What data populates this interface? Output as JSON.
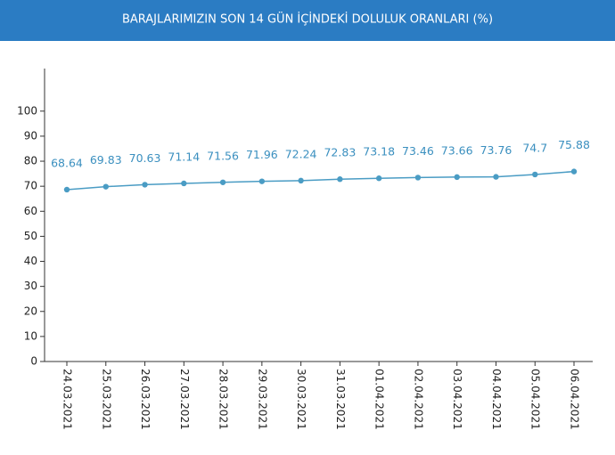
{
  "chart_data": {
    "type": "line",
    "title": "BARAJLARIMIZIN SON 14 GÜN İÇİNDEKİ DOLULUK ORANLARI (%)",
    "categories": [
      "24.03.2021",
      "25.03.2021",
      "26.03.2021",
      "27.03.2021",
      "28.03.2021",
      "29.03.2021",
      "30.03.2021",
      "31.03.2021",
      "01.04.2021",
      "02.04.2021",
      "03.04.2021",
      "04.04.2021",
      "05.04.2021",
      "06.04.2021"
    ],
    "values": [
      68.64,
      69.83,
      70.63,
      71.14,
      71.56,
      71.96,
      72.24,
      72.83,
      73.18,
      73.46,
      73.66,
      73.76,
      74.7,
      75.88
    ],
    "color": "#4a9cc4",
    "ylim": [
      0,
      117
    ],
    "yticks": [
      0,
      10,
      20,
      30,
      40,
      50,
      60,
      70,
      80,
      90,
      100
    ]
  }
}
